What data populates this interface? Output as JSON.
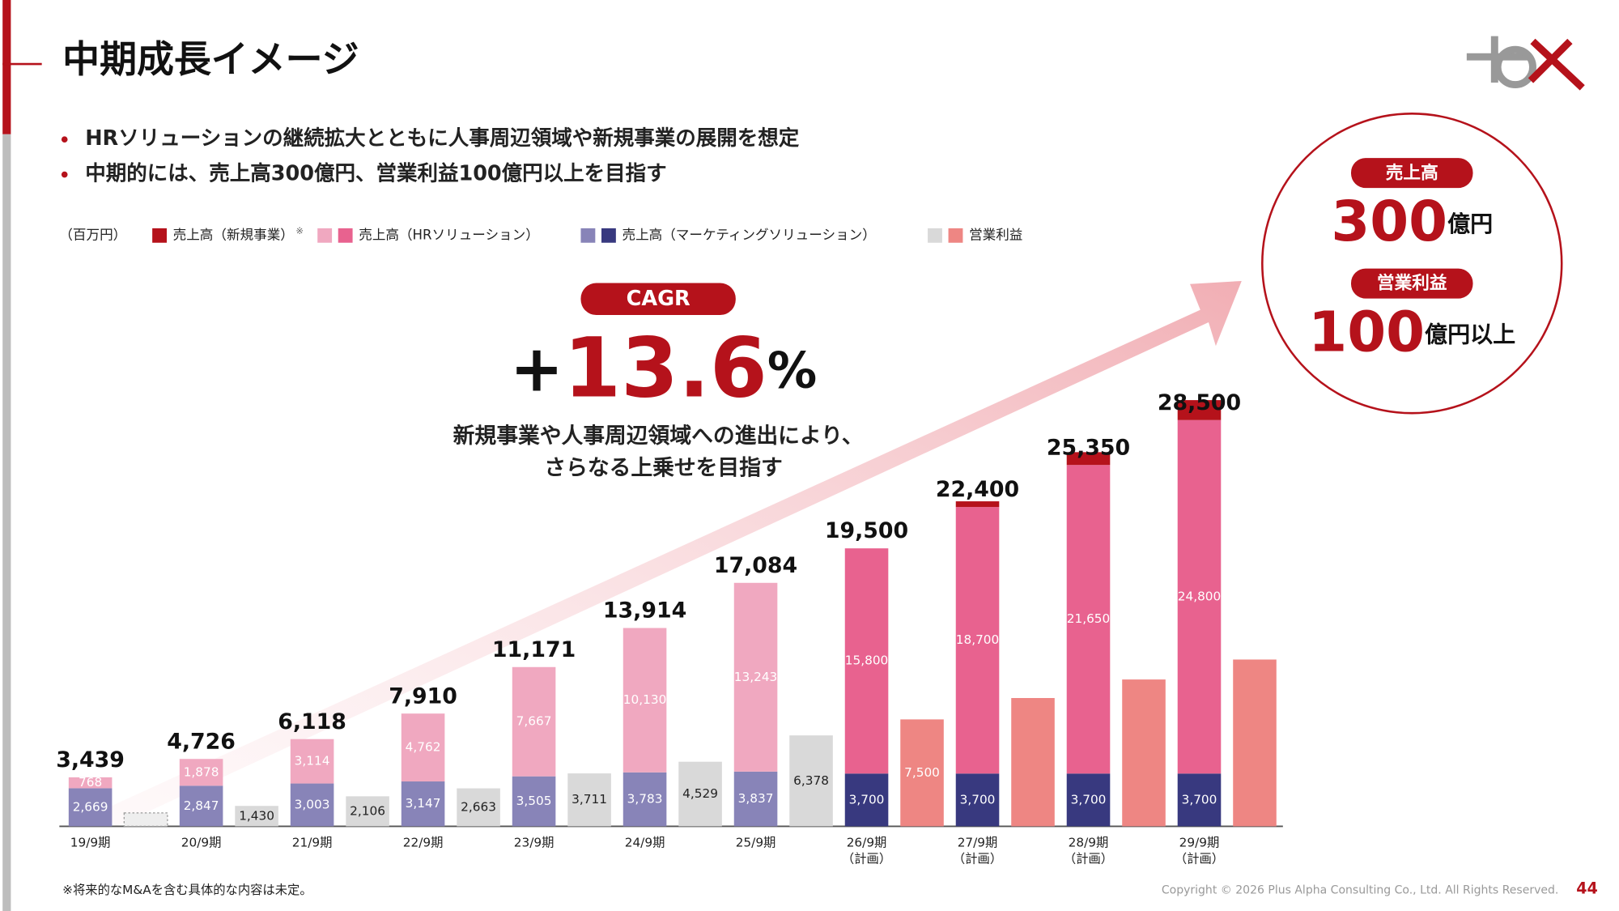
{
  "header": {
    "title": "中期成長イメージ"
  },
  "bullets": [
    "HRソリューションの継続拡大とともに人事周辺領域や新規事業の展開を想定",
    "中期的には、売上高300億円、営業利益100億円以上を目指す"
  ],
  "cagr": {
    "label": "CAGR",
    "sign": "+",
    "value": "13.6",
    "unit": "%",
    "lines": [
      "新規事業や人事周辺領域への進出により、",
      "さらなる上乗せを目指す"
    ]
  },
  "target": {
    "sales_label": "売上高",
    "sales_value": "300",
    "sales_unit": "億円",
    "profit_label": "営業利益",
    "profit_value": "100",
    "profit_unit": "億円以上"
  },
  "footer": {
    "note": "※将来的なM&Aを含む具体的な内容は未定。",
    "copyright": "Copyright © 2026 Plus Alpha Consulting Co., Ltd. All Rights Reserved.",
    "page": "44"
  },
  "chart_data": {
    "type": "bar",
    "unit": "（百万円）",
    "legend_note": "※",
    "categories": [
      "19/9期",
      "20/9期",
      "21/9期",
      "22/9期",
      "23/9期",
      "24/9期",
      "25/9期",
      "26/9期",
      "27/9期",
      "28/9期",
      "29/9期"
    ],
    "category_notes": [
      null,
      null,
      null,
      null,
      null,
      null,
      null,
      "（計画）",
      "（計画）",
      "（計画）",
      "（計画）"
    ],
    "series": [
      {
        "name": "売上高（新規事業）",
        "color": "#b5121b",
        "plan_color": "#b5121b",
        "values": [
          null,
          null,
          null,
          null,
          null,
          null,
          null,
          null,
          400,
          900,
          1400
        ],
        "value_labels": [
          null,
          null,
          null,
          null,
          null,
          null,
          null,
          null,
          null,
          null,
          null
        ]
      },
      {
        "name": "売上高（HRソリューション）",
        "color": "#f0a8c0",
        "plan_color": "#e8628f",
        "values": [
          768,
          1878,
          3114,
          4762,
          7667,
          10130,
          13243,
          15800,
          18700,
          21650,
          24800
        ],
        "value_labels": [
          "768",
          "1,878",
          "3,114",
          "4,762",
          "7,667",
          "10,130",
          "13,243",
          "15,800",
          "18,700",
          "21,650",
          "24,800"
        ]
      },
      {
        "name": "売上高（マーケティングソリューション）",
        "color": "#8884b8",
        "plan_color": "#38397f",
        "values": [
          2669,
          2847,
          3003,
          3147,
          3505,
          3783,
          3837,
          3700,
          3700,
          3700,
          3700
        ],
        "value_labels": [
          "2,669",
          "2,847",
          "3,003",
          "3,147",
          "3,505",
          "3,783",
          "3,837",
          "3,700",
          "3,700",
          "3,700",
          "3,700"
        ]
      },
      {
        "name": "営業利益",
        "color": "#d9d9d9",
        "plan_color": "#ee8683",
        "separate_bar": true,
        "values": [
          null,
          1430,
          2106,
          2663,
          3711,
          4529,
          6378,
          7500,
          9000,
          10300,
          11700
        ],
        "value_labels": [
          null,
          "1,430",
          "2,106",
          "2,663",
          "3,711",
          "4,529",
          "6,378",
          "7,500",
          null,
          null,
          null
        ]
      }
    ],
    "totals": [
      3439,
      4726,
      6118,
      7910,
      11171,
      13914,
      17084,
      19500,
      22400,
      25350,
      28500
    ],
    "total_labels": [
      "3,439",
      "4,726",
      "6,118",
      "7,910",
      "11,171",
      "13,914",
      "17,084",
      "19,500",
      "22,400",
      "25,350",
      "28,500"
    ],
    "ylim": [
      0,
      30000
    ]
  }
}
